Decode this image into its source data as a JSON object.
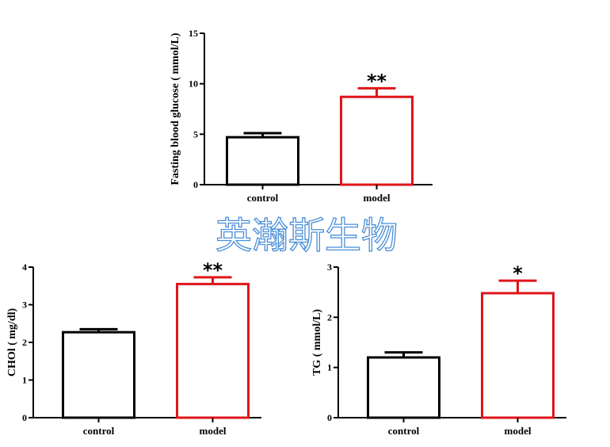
{
  "watermark": "英瀚斯生物",
  "colors": {
    "control": "#000000",
    "model": "#e0141a",
    "watermark": "#4a8fd8"
  },
  "chart_data": [
    {
      "type": "bar",
      "ylabel": "Fasting blood glucose ( mmol/L)",
      "categories": [
        "control",
        "model"
      ],
      "values": [
        4.7,
        8.7
      ],
      "errors": [
        0.4,
        0.85
      ],
      "significance": [
        "",
        "**"
      ],
      "ylim": [
        0,
        15
      ],
      "yticks": [
        0,
        5,
        10,
        15
      ]
    },
    {
      "type": "bar",
      "ylabel": "CHOl ( mg/dl)",
      "categories": [
        "control",
        "model"
      ],
      "values": [
        2.27,
        3.55
      ],
      "errors": [
        0.08,
        0.18
      ],
      "significance": [
        "",
        "**"
      ],
      "ylim": [
        0,
        4
      ],
      "yticks": [
        0,
        1,
        2,
        3,
        4
      ]
    },
    {
      "type": "bar",
      "ylabel": "TG ( mmol/L)",
      "categories": [
        "control",
        "model"
      ],
      "values": [
        1.2,
        2.48
      ],
      "errors": [
        0.1,
        0.25
      ],
      "significance": [
        "",
        "*"
      ],
      "ylim": [
        0,
        3
      ],
      "yticks": [
        0,
        1,
        2,
        3
      ]
    }
  ]
}
